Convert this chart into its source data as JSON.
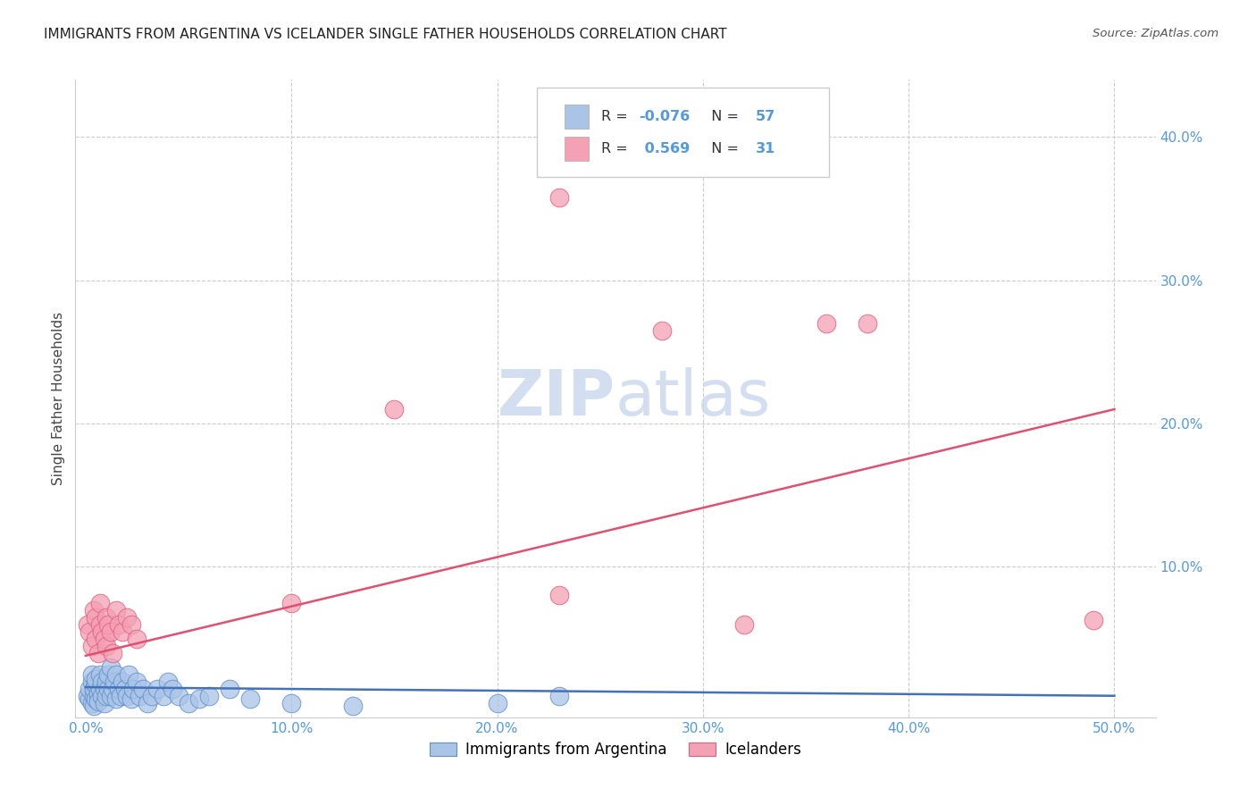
{
  "title": "IMMIGRANTS FROM ARGENTINA VS ICELANDER SINGLE FATHER HOUSEHOLDS CORRELATION CHART",
  "source": "Source: ZipAtlas.com",
  "ylabel": "Single Father Households",
  "xlim": [
    -0.005,
    0.52
  ],
  "ylim": [
    -0.005,
    0.44
  ],
  "xticks": [
    0.0,
    0.1,
    0.2,
    0.3,
    0.4,
    0.5
  ],
  "yticks": [
    0.0,
    0.1,
    0.2,
    0.3,
    0.4
  ],
  "xtick_labels": [
    "0.0%",
    "10.0%",
    "20.0%",
    "30.0%",
    "40.0%",
    "50.0%"
  ],
  "ytick_labels": [
    "",
    "10.0%",
    "20.0%",
    "30.0%",
    "40.0%"
  ],
  "argentina_R": -0.076,
  "argentina_N": 57,
  "iceland_R": 0.569,
  "iceland_N": 31,
  "argentina_color": "#aac4e8",
  "argentina_edge_color": "#6090c8",
  "argentina_line_color": "#4472b8",
  "iceland_color": "#f4a0b5",
  "iceland_edge_color": "#e06080",
  "iceland_line_color": "#e05070",
  "tick_color": "#5599dd",
  "watermark_color": "#c8d8ee",
  "legend_label_argentina": "Immigrants from Argentina",
  "legend_label_iceland": "Icelanders",
  "argentina_x": [
    0.001,
    0.002,
    0.002,
    0.003,
    0.003,
    0.003,
    0.004,
    0.004,
    0.004,
    0.005,
    0.005,
    0.005,
    0.006,
    0.006,
    0.007,
    0.007,
    0.008,
    0.008,
    0.009,
    0.009,
    0.01,
    0.01,
    0.011,
    0.011,
    0.012,
    0.012,
    0.013,
    0.014,
    0.015,
    0.015,
    0.016,
    0.017,
    0.018,
    0.019,
    0.02,
    0.021,
    0.022,
    0.023,
    0.025,
    0.026,
    0.028,
    0.03,
    0.032,
    0.035,
    0.038,
    0.04,
    0.042,
    0.045,
    0.05,
    0.055,
    0.06,
    0.07,
    0.08,
    0.1,
    0.13,
    0.2,
    0.23
  ],
  "argentina_y": [
    0.01,
    0.008,
    0.015,
    0.02,
    0.005,
    0.025,
    0.01,
    0.015,
    0.003,
    0.018,
    0.008,
    0.022,
    0.012,
    0.006,
    0.015,
    0.025,
    0.01,
    0.02,
    0.005,
    0.015,
    0.01,
    0.02,
    0.015,
    0.025,
    0.01,
    0.03,
    0.015,
    0.02,
    0.008,
    0.025,
    0.015,
    0.01,
    0.02,
    0.015,
    0.01,
    0.025,
    0.008,
    0.015,
    0.02,
    0.01,
    0.015,
    0.005,
    0.01,
    0.015,
    0.01,
    0.02,
    0.015,
    0.01,
    0.005,
    0.008,
    0.01,
    0.015,
    0.008,
    0.005,
    0.003,
    0.005,
    0.01
  ],
  "iceland_x": [
    0.001,
    0.002,
    0.003,
    0.004,
    0.005,
    0.005,
    0.006,
    0.007,
    0.007,
    0.008,
    0.009,
    0.01,
    0.01,
    0.011,
    0.012,
    0.013,
    0.015,
    0.016,
    0.018,
    0.02,
    0.022,
    0.025,
    0.23,
    0.28,
    0.36,
    0.38,
    0.49,
    0.15,
    0.32,
    0.23,
    0.1
  ],
  "iceland_y": [
    0.06,
    0.055,
    0.045,
    0.07,
    0.05,
    0.065,
    0.04,
    0.06,
    0.075,
    0.055,
    0.05,
    0.065,
    0.045,
    0.06,
    0.055,
    0.04,
    0.07,
    0.06,
    0.055,
    0.065,
    0.06,
    0.05,
    0.358,
    0.265,
    0.27,
    0.27,
    0.063,
    0.21,
    0.06,
    0.08,
    0.075
  ],
  "arg_line_x0": 0.0,
  "arg_line_x1": 0.5,
  "arg_line_y0": 0.016,
  "arg_line_y1": 0.01,
  "ice_line_x0": 0.0,
  "ice_line_x1": 0.5,
  "ice_line_y0": 0.038,
  "ice_line_y1": 0.21
}
